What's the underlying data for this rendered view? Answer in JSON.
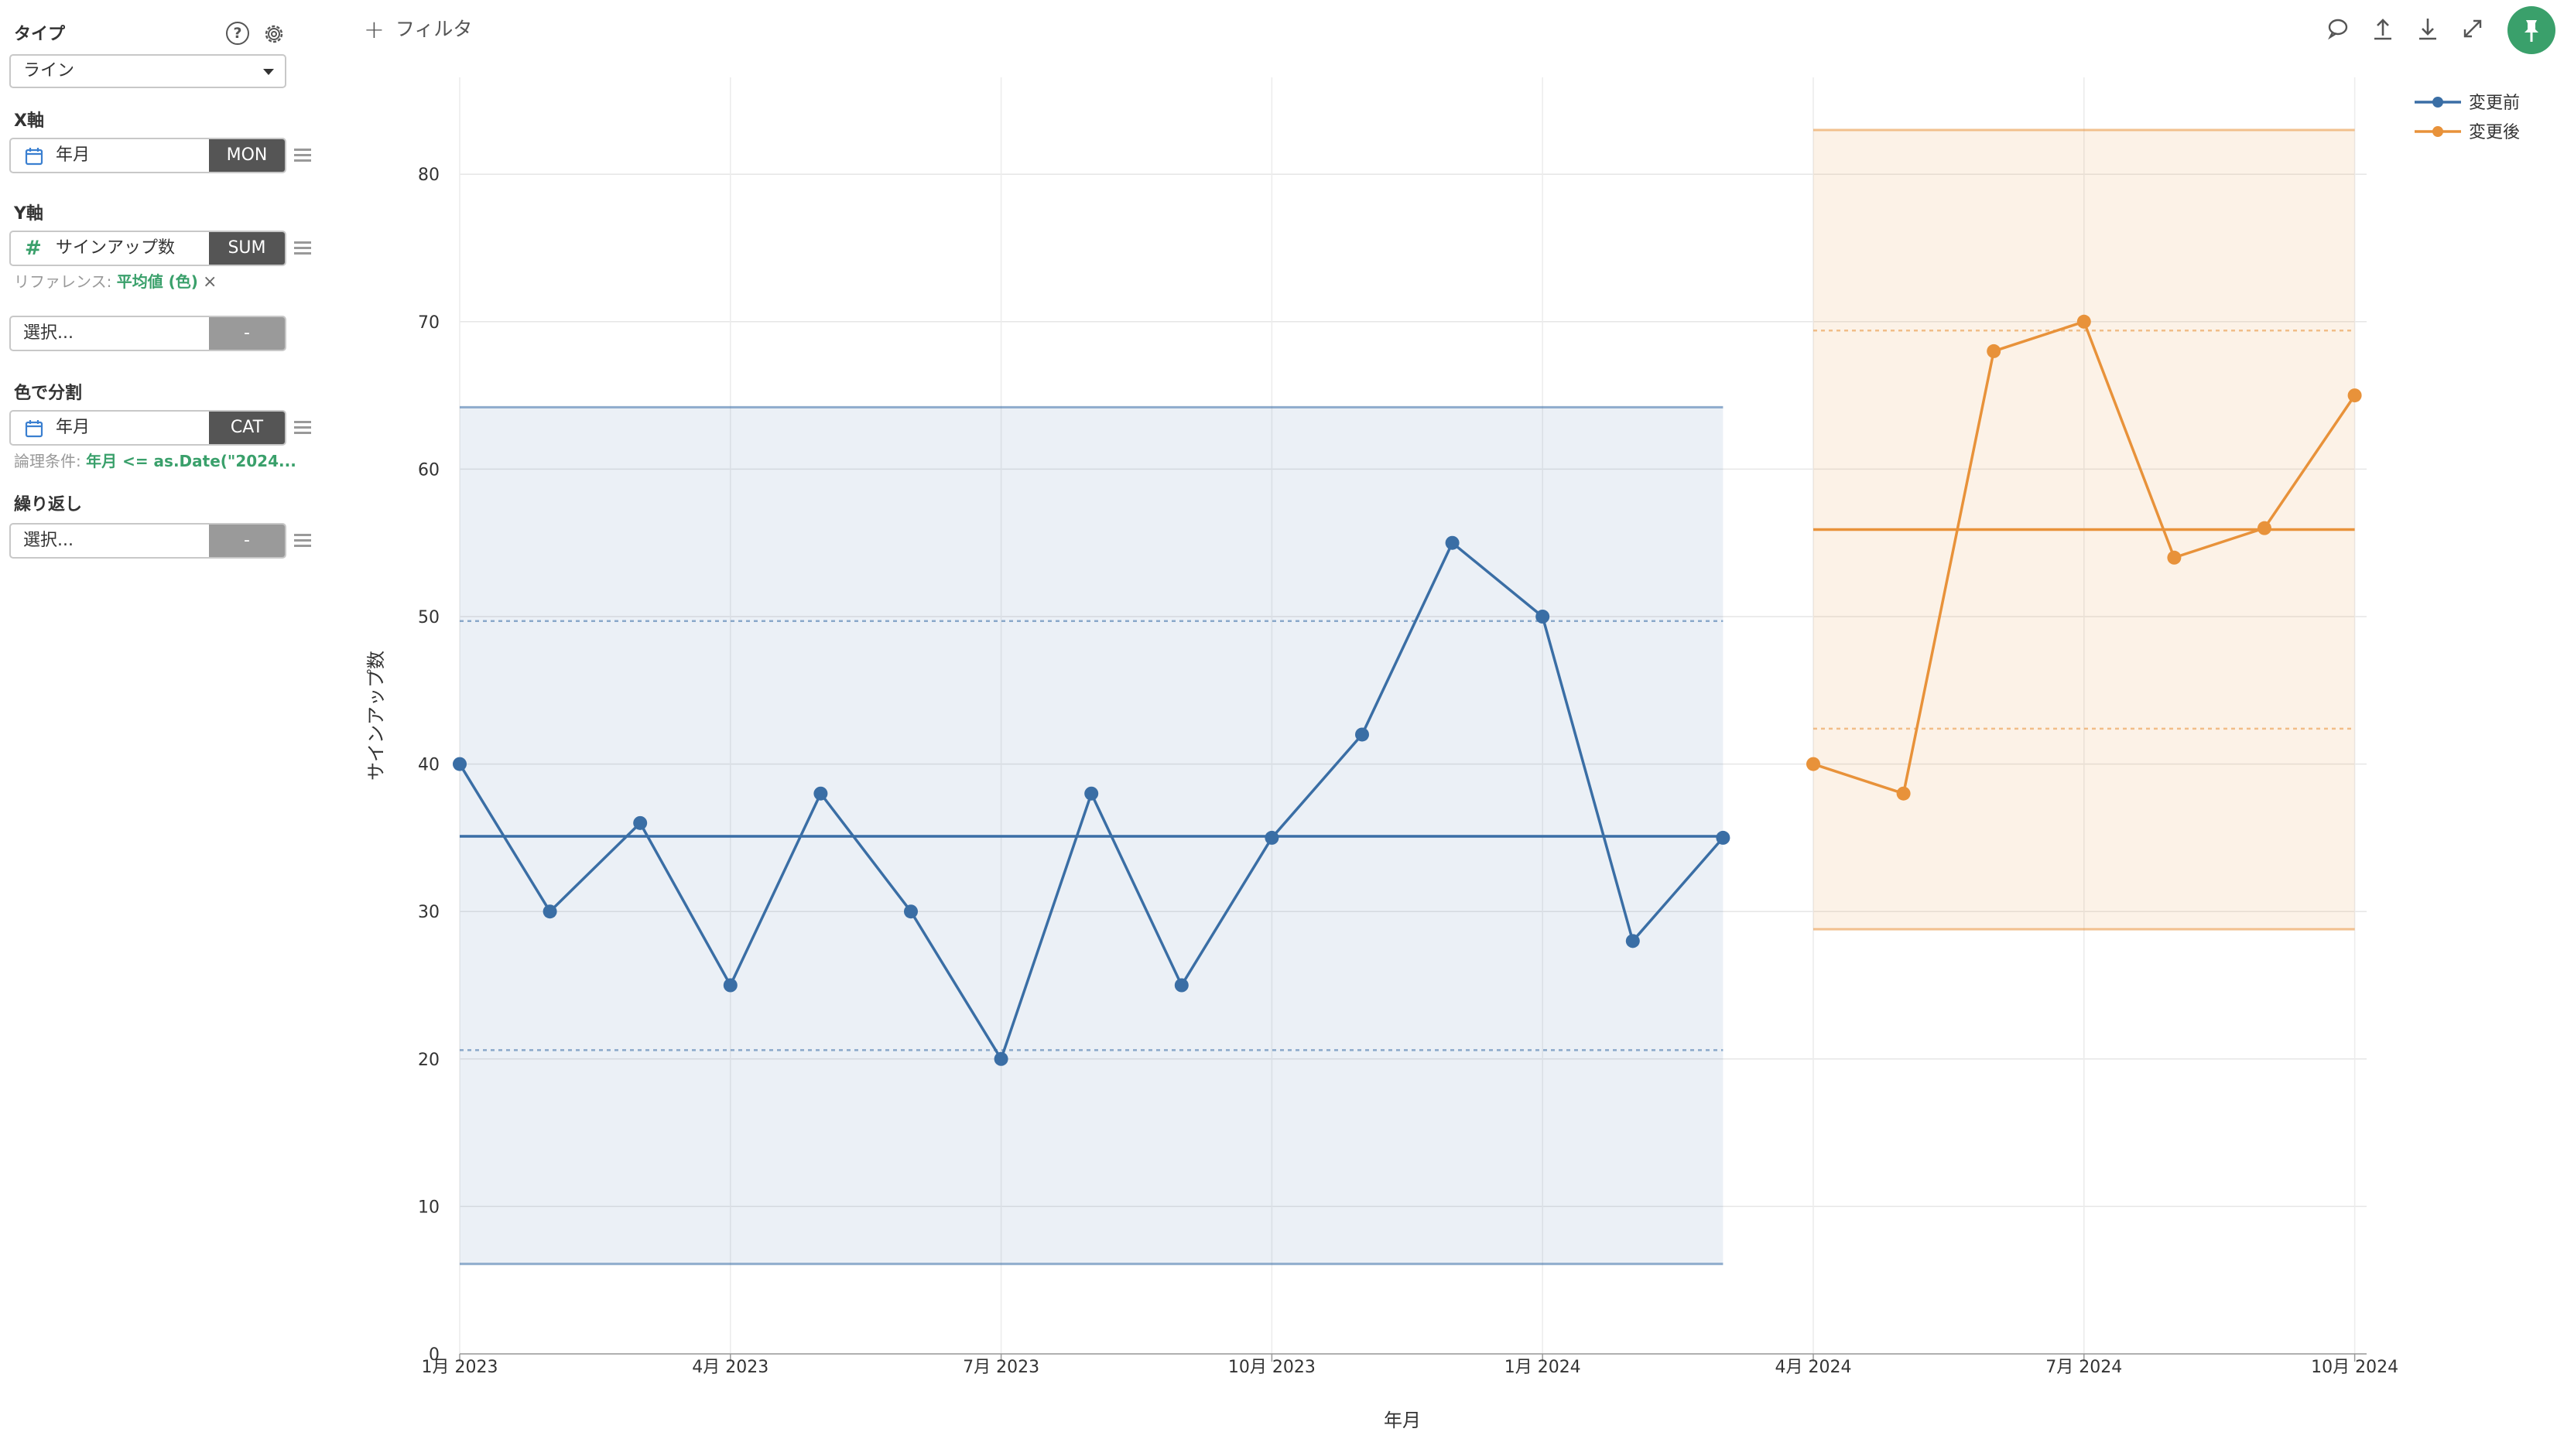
{
  "panel": {
    "type_label": "タイプ",
    "type_value": "ライン",
    "x_label": "X軸",
    "x_field": "年月",
    "x_btn": "MON",
    "y_label": "Y軸",
    "y_field": "サインアップ数",
    "y_btn": "SUM",
    "reference_prefix": "リファレンス: ",
    "reference_value": "平均値 (色)",
    "extra_placeholder": "選択...",
    "extra_btn": "-",
    "color_label": "色で分割",
    "color_field": "年月",
    "color_btn": "CAT",
    "condition_prefix": "論理条件: ",
    "condition_value": "年月 <= as.Date(\"2024...",
    "repeat_label": "繰り返し",
    "repeat_placeholder": "選択...",
    "repeat_btn": "-"
  },
  "toolbar": {
    "filter_label": "フィルタ",
    "icons": [
      "comment-icon",
      "upload-icon",
      "download-icon",
      "expand-icon",
      "pin-icon"
    ]
  },
  "colors": {
    "before": "#3a6ea5",
    "after": "#e8923a",
    "accent": "#3aa06b"
  },
  "chart_data": {
    "type": "line",
    "xlabel": "年月",
    "ylabel": "サインアップ数",
    "ylim": [
      0,
      85
    ],
    "yticks": [
      0,
      10,
      20,
      30,
      40,
      50,
      60,
      70,
      80
    ],
    "xticks": [
      "1月 2023",
      "4月 2023",
      "7月 2023",
      "10月 2023",
      "1月 2024",
      "4月 2024",
      "7月 2024",
      "10月 2024"
    ],
    "legend_position": "top-right",
    "grid": true,
    "series": [
      {
        "name": "変更前",
        "color": "#3a6ea5",
        "x": [
          "2023-01",
          "2023-02",
          "2023-03",
          "2023-04",
          "2023-05",
          "2023-06",
          "2023-07",
          "2023-08",
          "2023-09",
          "2023-10",
          "2023-11",
          "2023-12",
          "2024-01",
          "2024-02",
          "2024-03"
        ],
        "values": [
          40,
          30,
          36,
          25,
          38,
          30,
          20,
          38,
          25,
          35,
          42,
          55,
          50,
          28,
          35
        ],
        "mean": 35.1,
        "inner_band": [
          20.6,
          49.7
        ],
        "outer_band": [
          6.1,
          64.2
        ]
      },
      {
        "name": "変更後",
        "color": "#e8923a",
        "x": [
          "2024-04",
          "2024-05",
          "2024-06",
          "2024-07",
          "2024-08",
          "2024-09",
          "2024-10"
        ],
        "values": [
          40,
          38,
          68,
          70,
          54,
          56,
          65
        ],
        "mean": 55.9,
        "inner_band": [
          42.4,
          69.4
        ],
        "outer_band": [
          28.8,
          83.0
        ]
      }
    ]
  }
}
